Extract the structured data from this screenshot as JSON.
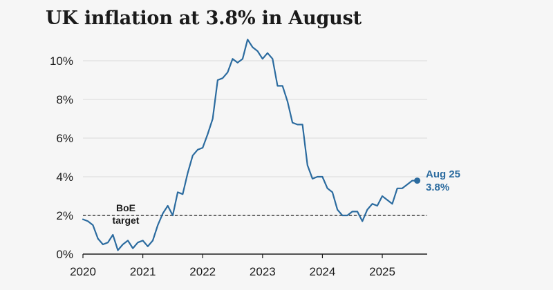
{
  "colors": {
    "series": "#2b6b9f",
    "grid": "#dadada",
    "axis": "#1a1a1a",
    "reference": "#1a1a1a",
    "background": "#f6f6f6"
  },
  "chart_data": {
    "type": "line",
    "title": "UK inflation at 3.8% in August",
    "xlabel": "",
    "ylabel": "",
    "xlim": [
      2020.0,
      2025.75
    ],
    "ylim": [
      0,
      11
    ],
    "x_ticks": [
      "2020",
      "2021",
      "2022",
      "2023",
      "2024",
      "2025"
    ],
    "y_ticks": [
      "0%",
      "2%",
      "4%",
      "6%",
      "8%",
      "10%"
    ],
    "grid": "horizontal",
    "legend": "none",
    "reference_line": {
      "value": 2,
      "style": "dashed",
      "label_line1": "BoE",
      "label_line2": "target"
    },
    "end_label": {
      "line1": "Aug 25",
      "line2": "3.8%"
    },
    "series": [
      {
        "monthly_from": "2020-01",
        "values": [
          1.8,
          1.7,
          1.5,
          0.8,
          0.5,
          0.6,
          1.0,
          0.2,
          0.5,
          0.7,
          0.3,
          0.6,
          0.7,
          0.4,
          0.7,
          1.5,
          2.1,
          2.5,
          2.0,
          3.2,
          3.1,
          4.2,
          5.1,
          5.4,
          5.5,
          6.2,
          7.0,
          9.0,
          9.1,
          9.4,
          10.1,
          9.9,
          10.1,
          11.1,
          10.7,
          10.5,
          10.1,
          10.4,
          10.1,
          8.7,
          8.7,
          7.9,
          6.8,
          6.7,
          6.7,
          4.6,
          3.9,
          4.0,
          4.0,
          3.4,
          3.2,
          2.3,
          2.0,
          2.0,
          2.2,
          2.2,
          1.7,
          2.3,
          2.6,
          2.5,
          3.0,
          2.8,
          2.6,
          3.4,
          3.4,
          3.6,
          3.8,
          3.8
        ]
      }
    ]
  }
}
